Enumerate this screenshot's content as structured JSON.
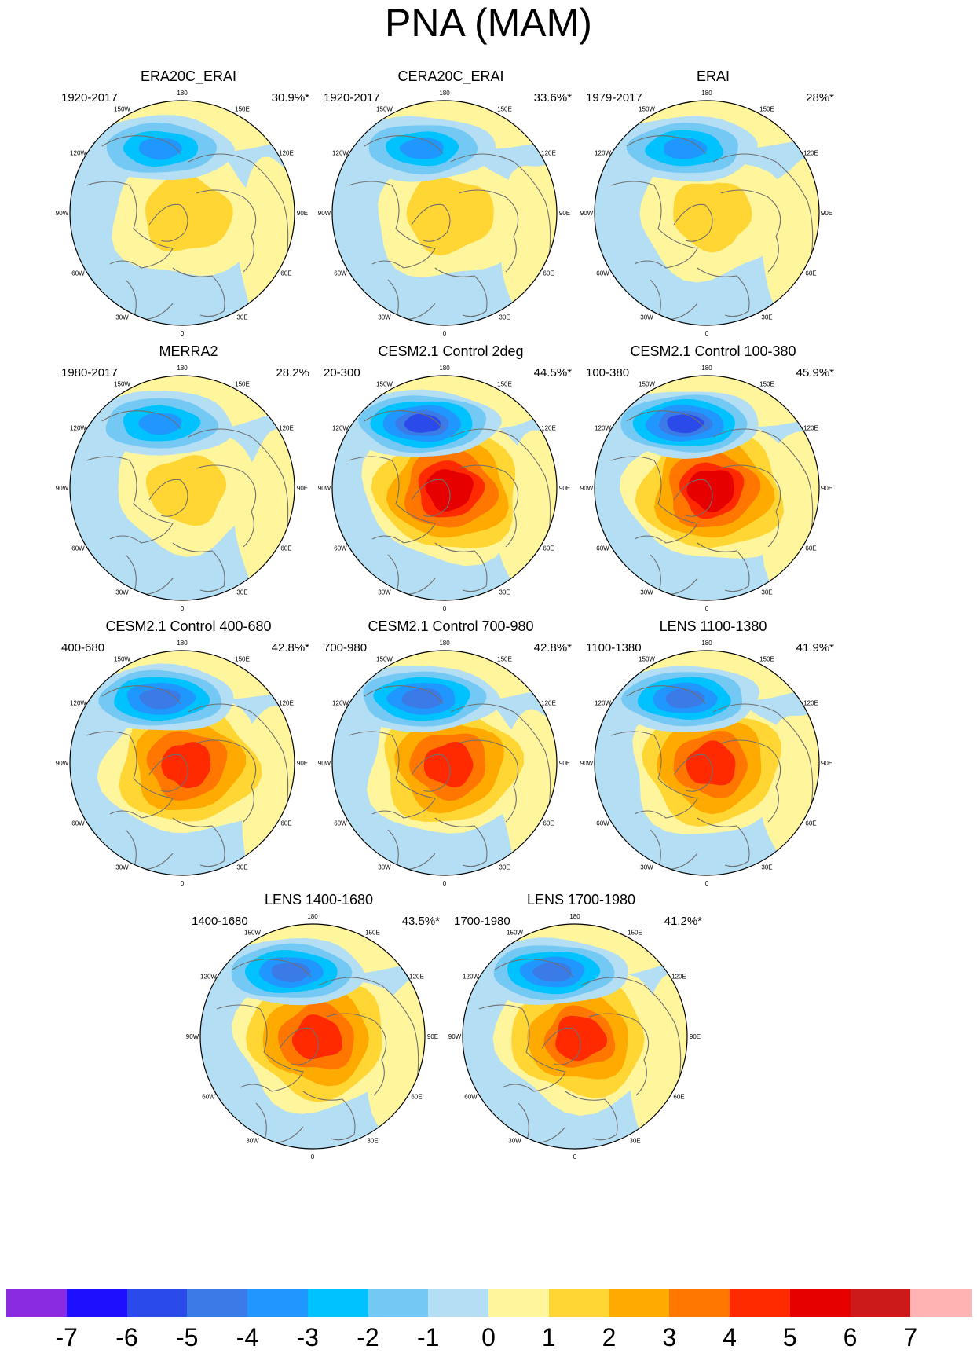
{
  "title": "PNA (MAM)",
  "colors": {
    "ocean_positive_pale": "#fff59d",
    "coastline": "#6f6f6f"
  },
  "chart_data": {
    "type": "polar-contour-map-grid",
    "title": "PNA (MAM)",
    "longitude_labels": [
      "180",
      "150E",
      "120E",
      "90E",
      "60E",
      "30E",
      "0",
      "30W",
      "60W",
      "90W",
      "120W",
      "150W"
    ],
    "colorbar": {
      "levels": [
        "-7",
        "-6",
        "-5",
        "-4",
        "-3",
        "-2",
        "-1",
        "0",
        "1",
        "2",
        "3",
        "4",
        "5",
        "6",
        "7"
      ],
      "colors": [
        "#8a2be2",
        "#1f0fff",
        "#2a4bea",
        "#3a7be8",
        "#1f97ff",
        "#00c2ff",
        "#74c9f4",
        "#b3def4",
        "#fff59d",
        "#ffd633",
        "#ffaa00",
        "#ff7700",
        "#ff2a00",
        "#e60000",
        "#cc1a1a",
        "#ffb3b3"
      ]
    },
    "panels": [
      {
        "title": "ERA20C_ERAI",
        "period": "1920-2017",
        "variance": "30.9%*",
        "neg_peak": -3.4,
        "pos_peak": 1.8
      },
      {
        "title": "CERA20C_ERAI",
        "period": "1920-2017",
        "variance": "33.6%*",
        "neg_peak": -3.3,
        "pos_peak": 1.8
      },
      {
        "title": "ERAI",
        "period": "1979-2017",
        "variance": "28%*",
        "neg_peak": -3.5,
        "pos_peak": 1.6
      },
      {
        "title": "MERRA2",
        "period": "1980-2017",
        "variance": "28.2%",
        "neg_peak": -3.5,
        "pos_peak": 1.3
      },
      {
        "title": "CESM2.1 Control 2deg",
        "period": "20-300",
        "variance": "44.5%*",
        "neg_peak": -5.2,
        "pos_peak": 5.2
      },
      {
        "title": "CESM2.1 Control 100-380",
        "period": "100-380",
        "variance": "45.9%*",
        "neg_peak": -5.2,
        "pos_peak": 5.1
      },
      {
        "title": "CESM2.1 Control 400-680",
        "period": "400-680",
        "variance": "42.8%*",
        "neg_peak": -4.6,
        "pos_peak": 4.5
      },
      {
        "title": "CESM2.1 Control 700-980",
        "period": "700-980",
        "variance": "42.8%*",
        "neg_peak": -4.6,
        "pos_peak": 4.4
      },
      {
        "title": "LENS 1100-1380",
        "period": "1100-1380",
        "variance": "41.9%*",
        "neg_peak": -4.4,
        "pos_peak": 4.3
      },
      {
        "title": "LENS 1400-1680",
        "period": "1400-1680",
        "variance": "43.5%*",
        "neg_peak": -4.4,
        "pos_peak": 4.4
      },
      {
        "title": "LENS 1700-1980",
        "period": "1700-1980",
        "variance": "41.2%*",
        "neg_peak": -4.4,
        "pos_peak": 4.1
      }
    ]
  }
}
